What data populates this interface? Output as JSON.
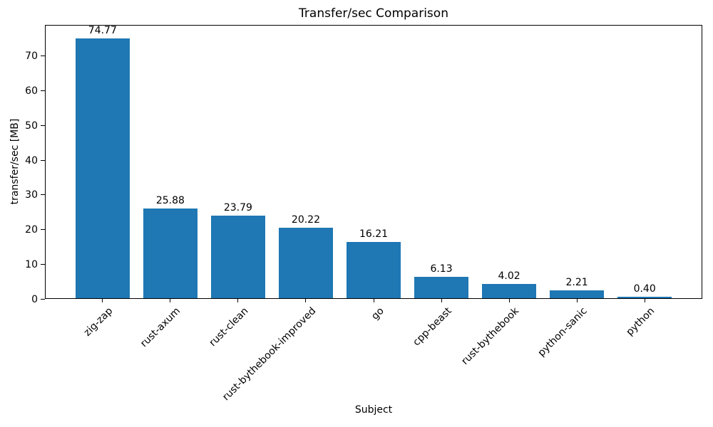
{
  "chart_data": {
    "type": "bar",
    "title": "Transfer/sec Comparison",
    "xlabel": "Subject",
    "ylabel": "transfer/sec [MB]",
    "categories": [
      "zig-zap",
      "rust-axum",
      "rust-clean",
      "rust-bythebook-improved",
      "go",
      "cpp-beast",
      "rust-bythebook",
      "python-sanic",
      "python"
    ],
    "values": [
      74.77,
      25.88,
      23.79,
      20.22,
      16.21,
      6.13,
      4.02,
      2.21,
      0.4
    ],
    "bar_labels": [
      "74.77",
      "25.88",
      "23.79",
      "20.22",
      "16.21",
      "6.13",
      "4.02",
      "2.21",
      "0.40"
    ],
    "yticks": [
      0,
      10,
      20,
      30,
      40,
      50,
      60,
      70
    ],
    "ylim": [
      0,
      78.8
    ],
    "xlim": [
      -0.84,
      8.84
    ],
    "bar_width_units": 0.8,
    "bar_color": "#1f77b4",
    "text_color": "#000000",
    "spine_color": "#000000",
    "background_color": "#ffffff",
    "grid": false,
    "legend": null,
    "xtick_rotation_deg": 45
  }
}
